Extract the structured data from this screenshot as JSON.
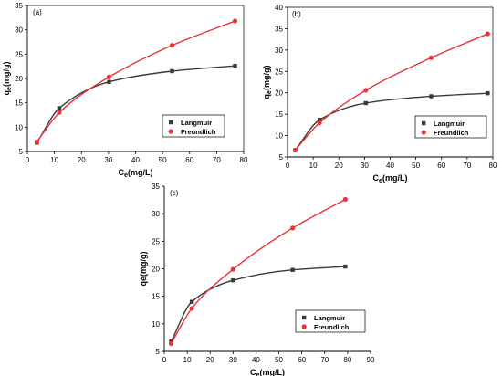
{
  "colors": {
    "langmuir": "#3a3a3a",
    "freundlich": "#e8333a",
    "axis": "#000000"
  },
  "chart_data": [
    {
      "type": "line",
      "panel_label": "(a)",
      "xlabel_main": "C",
      "xlabel_sub": "e",
      "xlabel_rest": "(mg/L)",
      "ylabel_main": "q",
      "ylabel_sub": "e",
      "ylabel_rest": "(mg/g)",
      "xlim": [
        0,
        80
      ],
      "ylim": [
        5,
        35
      ],
      "xticks": [
        "0",
        "10",
        "20",
        "30",
        "40",
        "50",
        "60",
        "70",
        "80"
      ],
      "yticks": [
        "5",
        "10",
        "15",
        "20",
        "25",
        "30",
        "35"
      ],
      "frame": "full",
      "legend_position": "bottom-right",
      "series": [
        {
          "name": "Langmuir",
          "marker": "square",
          "x": [
            3.5,
            11.8,
            30.2,
            53.5,
            76.8
          ],
          "y": [
            6.8,
            13.9,
            19.3,
            21.5,
            22.6
          ]
        },
        {
          "name": "Freundlich",
          "marker": "circle",
          "x": [
            3.5,
            11.8,
            30.2,
            53.5,
            76.8
          ],
          "y": [
            7.0,
            13.0,
            20.3,
            26.8,
            31.8
          ]
        }
      ]
    },
    {
      "type": "line",
      "panel_label": "(b)",
      "xlabel_main": "C",
      "xlabel_sub": "e",
      "xlabel_rest": "(mg/L)",
      "ylabel_main": "q",
      "ylabel_sub": "e",
      "ylabel_rest": "(mg/g)",
      "xlim": [
        0,
        80
      ],
      "ylim": [
        5,
        40
      ],
      "xticks": [
        "0",
        "10",
        "20",
        "30",
        "40",
        "50",
        "60",
        "70",
        "80"
      ],
      "yticks": [
        "5",
        "10",
        "15",
        "20",
        "25",
        "30",
        "35",
        "40"
      ],
      "frame": "full",
      "legend_position": "bottom-right",
      "series": [
        {
          "name": "Langmuir",
          "marker": "square",
          "x": [
            3.0,
            12.5,
            30.5,
            56.0,
            78.0
          ],
          "y": [
            6.6,
            13.7,
            17.6,
            19.2,
            19.9
          ]
        },
        {
          "name": "Freundlich",
          "marker": "circle",
          "x": [
            3.0,
            12.5,
            30.5,
            56.0,
            78.0
          ],
          "y": [
            6.6,
            13.0,
            20.6,
            28.2,
            33.8
          ]
        }
      ]
    },
    {
      "type": "line",
      "panel_label": "(c)",
      "xlabel_main": "C",
      "xlabel_sub": "e",
      "xlabel_rest": "(mg/L)",
      "ylabel_main": "qe(mg/g)",
      "ylabel_sub": "",
      "ylabel_rest": "",
      "xlim": [
        0,
        90
      ],
      "ylim": [
        5,
        35
      ],
      "xticks": [
        "0",
        "10",
        "20",
        "30",
        "40",
        "50",
        "60",
        "70",
        "80",
        "90"
      ],
      "yticks": [
        "5",
        "10",
        "15",
        "20",
        "25",
        "30",
        "35"
      ],
      "frame": "axes-only",
      "legend_position": "bottom-right",
      "series": [
        {
          "name": "Langmuir",
          "marker": "square",
          "x": [
            3.0,
            12.0,
            30.0,
            56.0,
            79.0
          ],
          "y": [
            6.8,
            14.0,
            17.9,
            19.8,
            20.4
          ]
        },
        {
          "name": "Freundlich",
          "marker": "circle",
          "x": [
            3.0,
            12.0,
            30.0,
            56.0,
            79.0
          ],
          "y": [
            6.4,
            12.8,
            19.9,
            27.4,
            32.6
          ]
        }
      ]
    }
  ]
}
